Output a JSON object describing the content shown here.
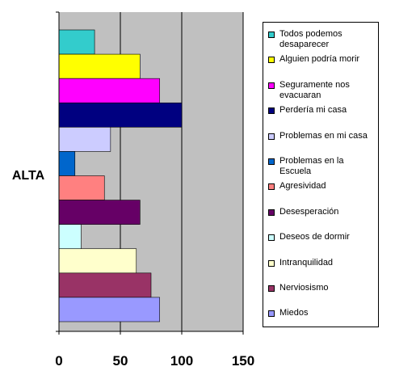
{
  "chart_data": {
    "type": "bar",
    "orientation": "horizontal",
    "category_label": "ALTA",
    "xlim": [
      0,
      150
    ],
    "xticks": [
      "0",
      "50",
      "100",
      "150"
    ],
    "grid": true,
    "legend_position": "right",
    "series": [
      {
        "name": "Todos podemos desaparecer",
        "value": 29,
        "color": "#33CCCC"
      },
      {
        "name": "Alguien podría morir",
        "value": 66,
        "color": "#FFFF00"
      },
      {
        "name": "Seguramente nos evacuaran",
        "value": 82,
        "color": "#FF00FF"
      },
      {
        "name": "Perdería mi casa",
        "value": 100,
        "color": "#000080"
      },
      {
        "name": "Problemas en mi casa",
        "value": 42,
        "color": "#CCCCFF"
      },
      {
        "name": "Problemas en la Escuela",
        "value": 13,
        "color": "#0066CC"
      },
      {
        "name": "Agresividad",
        "value": 37,
        "color": "#FF8080"
      },
      {
        "name": "Desesperación",
        "value": 66,
        "color": "#660066"
      },
      {
        "name": "Deseos de dormir",
        "value": 18,
        "color": "#CCFFFF"
      },
      {
        "name": "Intranquilidad",
        "value": 63,
        "color": "#FFFFCC"
      },
      {
        "name": "Nerviosismo",
        "value": 75,
        "color": "#993366"
      },
      {
        "name": "Miedos",
        "value": 82,
        "color": "#9999FF"
      }
    ]
  }
}
